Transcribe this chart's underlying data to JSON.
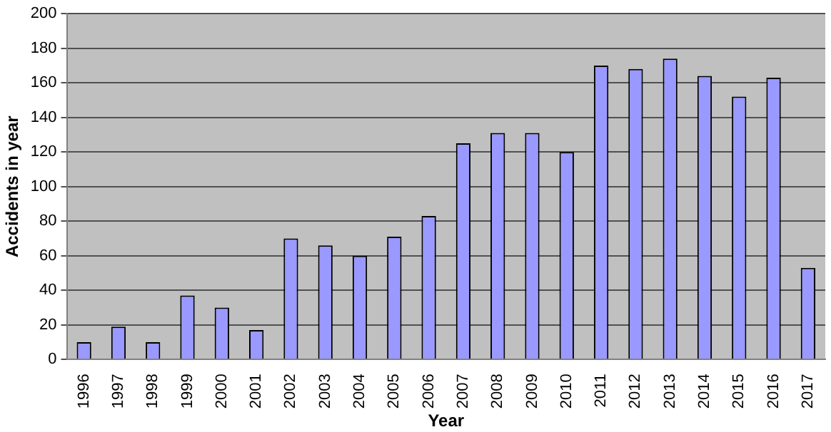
{
  "chart_data": {
    "type": "bar",
    "xlabel": "Year",
    "ylabel": "Accidents in year",
    "categories": [
      "1996",
      "1997",
      "1998",
      "1999",
      "2000",
      "2001",
      "2002",
      "2003",
      "2004",
      "2005",
      "2006",
      "2007",
      "2008",
      "2009",
      "2010",
      "2011",
      "2012",
      "2013",
      "2014",
      "2015",
      "2016",
      "2017"
    ],
    "values": [
      10,
      19,
      10,
      37,
      30,
      17,
      70,
      66,
      60,
      71,
      83,
      125,
      131,
      131,
      120,
      170,
      168,
      174,
      164,
      152,
      163,
      53
    ],
    "color": "#9999ff",
    "ylim": [
      0,
      200
    ],
    "yticks": [
      0,
      20,
      40,
      60,
      80,
      100,
      120,
      140,
      160,
      180,
      200
    ],
    "grid": "y",
    "legend": false
  }
}
